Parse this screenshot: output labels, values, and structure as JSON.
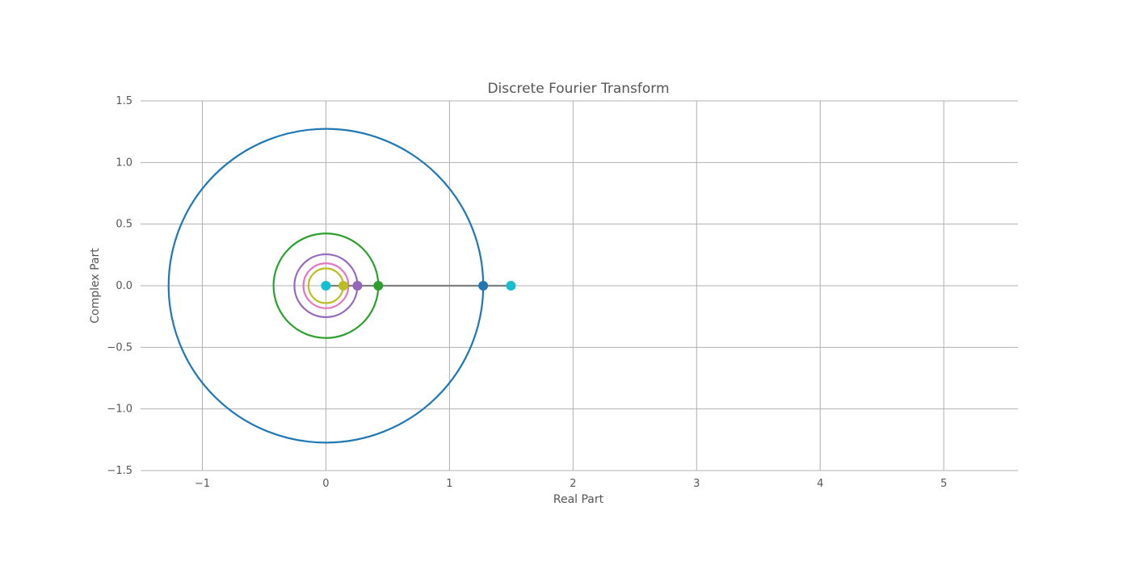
{
  "chart_data": {
    "type": "scatter",
    "title": "Discrete Fourier Transform",
    "xlabel": "Real Part",
    "ylabel": "Complex Part",
    "xlim": [
      -1.5,
      5.6
    ],
    "ylim": [
      -1.5,
      1.5
    ],
    "x_ticks": [
      -1,
      0,
      1,
      2,
      3,
      4,
      5
    ],
    "x_tick_labels": [
      "−1",
      "0",
      "1",
      "2",
      "3",
      "4",
      "5"
    ],
    "y_ticks": [
      -1.5,
      -1.0,
      -0.5,
      0.0,
      0.5,
      1.0,
      1.5
    ],
    "y_tick_labels": [
      "−1.5",
      "−1.0",
      "−0.5",
      "0.0",
      "0.5",
      "1.0",
      "1.5"
    ],
    "grid": true,
    "circles": [
      {
        "cx": 0.0,
        "cy": 0.0,
        "r": 1.273,
        "color": "#1f77b4"
      },
      {
        "cx": 0.0,
        "cy": 0.0,
        "r": 0.424,
        "color": "#2ca02c"
      },
      {
        "cx": 0.0,
        "cy": 0.0,
        "r": 0.255,
        "color": "#9467bd"
      },
      {
        "cx": 0.0,
        "cy": 0.0,
        "r": 0.182,
        "color": "#e377c2"
      },
      {
        "cx": 0.0,
        "cy": 0.0,
        "r": 0.141,
        "color": "#bcbd22"
      }
    ],
    "path_line": {
      "x": [
        0.0,
        1.497
      ],
      "y": [
        0.0,
        0.0
      ],
      "color": "#7f7f7f"
    },
    "points": [
      {
        "x": 1.273,
        "y": 0.0,
        "color": "#1f77b4"
      },
      {
        "x": 0.424,
        "y": 0.0,
        "color": "#2ca02c"
      },
      {
        "x": 0.255,
        "y": 0.0,
        "color": "#9467bd"
      },
      {
        "x": 0.141,
        "y": 0.0,
        "color": "#bcbd22"
      },
      {
        "x": 0.0,
        "y": 0.0,
        "color": "#17becf"
      },
      {
        "x": 1.497,
        "y": 0.0,
        "color": "#17becf"
      }
    ]
  }
}
